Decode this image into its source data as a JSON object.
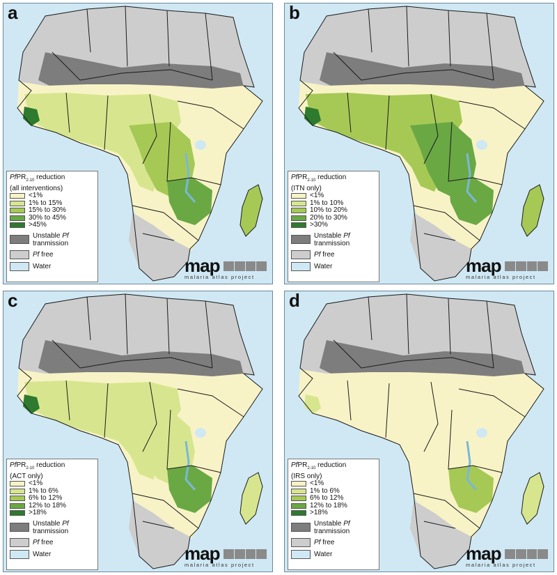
{
  "colors": {
    "water": "#cfe8f4",
    "pf_free": "#cdcdcd",
    "unstable": "#7d7d7d",
    "class1": "#f8f3c6",
    "class2": "#d7e68e",
    "class3": "#a6c956",
    "class4": "#6aa844",
    "class5": "#2e7a2e",
    "border": "#1a1a1a"
  },
  "logo": {
    "word": "map",
    "subtitle": "malaria atlas project"
  },
  "panels": [
    {
      "letter": "a",
      "legend_title_italic": "Pf",
      "legend_title_rest": "PR",
      "legend_title_sub": "2-10",
      "legend_title_tail": " reduction",
      "legend_subtitle": "(all interventions)",
      "classes": [
        "<1%",
        "1% to 15%",
        "15% to 30%",
        "30% to 45%",
        ">45%"
      ],
      "unstable_label": "Unstable",
      "unstable_italic": "Pf",
      "unstable_line2": "tranmission",
      "free_italic": "Pf",
      "free_label": " free",
      "water_label": "Water"
    },
    {
      "letter": "b",
      "legend_title_italic": "Pf",
      "legend_title_rest": "PR",
      "legend_title_sub": "2-10",
      "legend_title_tail": " reduction",
      "legend_subtitle": "(ITN only)",
      "classes": [
        "<1%",
        "1% to 10%",
        "10% to 20%",
        "20% to 30%",
        ">30%"
      ],
      "unstable_label": "Unstable",
      "unstable_italic": "Pf",
      "unstable_line2": "tranmission",
      "free_italic": "Pf",
      "free_label": " free",
      "water_label": "Water"
    },
    {
      "letter": "c",
      "legend_title_italic": "Pf",
      "legend_title_rest": "PR",
      "legend_title_sub": "2-10",
      "legend_title_tail": " reduction",
      "legend_subtitle": "(ACT only)",
      "classes": [
        "<1%",
        "1% to 6%",
        "6% to 12%",
        "12% to 18%",
        ">18%"
      ],
      "unstable_label": "Unstable",
      "unstable_italic": "Pf",
      "unstable_line2": "tranmission",
      "free_italic": "Pf",
      "free_label": " free",
      "water_label": "Water"
    },
    {
      "letter": "d",
      "legend_title_italic": "Pf",
      "legend_title_rest": "PR",
      "legend_title_sub": "2-10",
      "legend_title_tail": " reduction",
      "legend_subtitle": "(IRS only)",
      "classes": [
        "<1%",
        "1% to 6%",
        "6% to 12%",
        "12% to 18%",
        ">18%"
      ],
      "unstable_label": "Unstable",
      "unstable_italic": "Pf",
      "unstable_line2": "tranmission",
      "free_italic": "Pf",
      "free_label": " free",
      "water_label": "Water"
    }
  ]
}
